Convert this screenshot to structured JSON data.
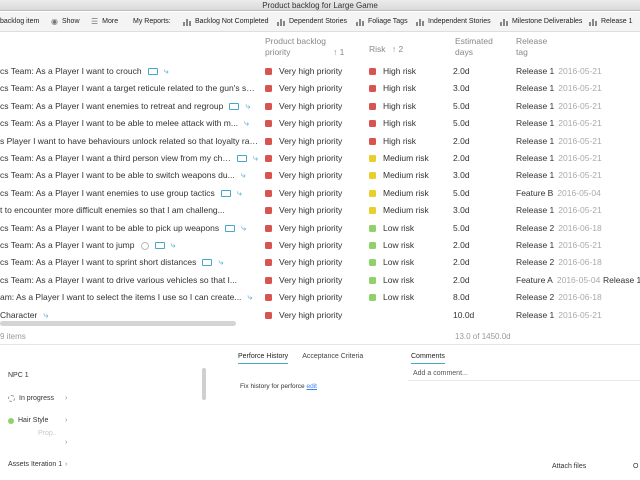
{
  "window": {
    "title": "Product backlog for Large Game"
  },
  "toolbar": {
    "backlog_item": "backlog item",
    "show": "Show",
    "more": "More",
    "my_reports": "My Reports:",
    "reports": [
      "Backlog Not Completed",
      "Dependent Stories",
      "Foliage Tags",
      "Independent Stories",
      "Milestone Deliverables",
      "Release 1"
    ]
  },
  "columns": {
    "priority": "Product backlog priority",
    "priority_sort": "↑ 1",
    "risk": "Risk",
    "risk_sort": "↑ 2",
    "estimated": "Estimated days",
    "release": "Release tag"
  },
  "colors": {
    "red": "#d9534f",
    "yellow": "#e8cf2c",
    "green": "#8fd16a",
    "accent": "#4aa8c7"
  },
  "rows": [
    {
      "title": "cs Team: As a Player I want to crouch",
      "priority": "Very high priority",
      "risk": "High risk",
      "risk_color": "#d9534f",
      "est": "2.0d",
      "release": "Release 1",
      "date": "2016-05-21",
      "extra": ""
    },
    {
      "title": "cs Team: As a Player I want a target reticule related to the gun's spre...",
      "priority": "Very high priority",
      "risk": "High risk",
      "risk_color": "#d9534f",
      "est": "3.0d",
      "release": "Release 1",
      "date": "2016-05-21",
      "extra": ""
    },
    {
      "title": "cs Team: As a Player I want enemies to retreat and regroup",
      "priority": "Very high priority",
      "risk": "High risk",
      "risk_color": "#d9534f",
      "est": "5.0d",
      "release": "Release 1",
      "date": "2016-05-21",
      "extra": ""
    },
    {
      "title": "cs Team: As a Player I want to be able to melee attack with m...",
      "priority": "Very high priority",
      "risk": "High risk",
      "risk_color": "#d9534f",
      "est": "5.0d",
      "release": "Release 1",
      "date": "2016-05-21",
      "extra": ""
    },
    {
      "title": "s Player I want to have behaviours unlock related so that loyalty rat...",
      "priority": "Very high priority",
      "risk": "High risk",
      "risk_color": "#d9534f",
      "est": "2.0d",
      "release": "Release 1",
      "date": "2016-05-21",
      "extra": ""
    },
    {
      "title": "cs Team: As a Player I want a third person view from my char...",
      "priority": "Very high priority",
      "risk": "Medium risk",
      "risk_color": "#e8cf2c",
      "est": "2.0d",
      "release": "Release 1",
      "date": "2016-05-21",
      "extra": ""
    },
    {
      "title": "cs Team: As a Player I want to be able to switch weapons du...",
      "priority": "Very high priority",
      "risk": "Medium risk",
      "risk_color": "#e8cf2c",
      "est": "3.0d",
      "release": "Release 1",
      "date": "2016-05-21",
      "extra": ""
    },
    {
      "title": "cs Team: As a Player I want enemies to use group tactics",
      "priority": "Very high priority",
      "risk": "Medium risk",
      "risk_color": "#e8cf2c",
      "est": "5.0d",
      "release": "Feature B",
      "date": "2016-05-04",
      "extra": ""
    },
    {
      "title": "t to encounter more difficult enemies so that I am challeng...",
      "priority": "Very high priority",
      "risk": "Medium risk",
      "risk_color": "#e8cf2c",
      "est": "3.0d",
      "release": "Release 1",
      "date": "2016-05-21",
      "extra": ""
    },
    {
      "title": "cs Team: As a Player I want to be able to pick up weapons",
      "priority": "Very high priority",
      "risk": "Low risk",
      "risk_color": "#8fd16a",
      "est": "5.0d",
      "release": "Release 2",
      "date": "2016-06-18",
      "extra": ""
    },
    {
      "title": "cs Team: As a Player I want to jump",
      "priority": "Very high priority",
      "risk": "Low risk",
      "risk_color": "#8fd16a",
      "est": "2.0d",
      "release": "Release 1",
      "date": "2016-05-21",
      "extra": ""
    },
    {
      "title": "cs Team: As a Player I want to sprint short distances",
      "priority": "Very high priority",
      "risk": "Low risk",
      "risk_color": "#8fd16a",
      "est": "2.0d",
      "release": "Release 2",
      "date": "2016-06-18",
      "extra": ""
    },
    {
      "title": "cs Team: As a Player I want to drive various vehicles so that I...",
      "priority": "Very high priority",
      "risk": "Low risk",
      "risk_color": "#8fd16a",
      "est": "2.0d",
      "release": "Feature A",
      "date": "2016-05-04",
      "extra": "Release 1"
    },
    {
      "title": "am: As a Player I want to select the items I use so I can create...",
      "priority": "Very high priority",
      "risk": "Low risk",
      "risk_color": "#8fd16a",
      "est": "8.0d",
      "release": "Release 2",
      "date": "2016-06-18",
      "extra": ""
    },
    {
      "title": "Character",
      "priority": "Very high priority",
      "risk": "",
      "risk_color": "",
      "est": "10.0d",
      "release": "Release 1",
      "date": "2016-05-21",
      "extra": ""
    }
  ],
  "footer": {
    "items": "9 items",
    "summary": "13.0 of 1450.0d"
  },
  "detail": {
    "npc": "NPC 1",
    "status": "In progress",
    "hair": "Hair Style",
    "faded": "Prop..",
    "assets": "Assets Iteration 1",
    "tab_perforce": "Perforce History",
    "tab_acceptance": "Acceptance Criteria",
    "fix_history": "Fix history for perforce",
    "fix_link": "edit",
    "comments": "Comments",
    "add_comment": "Add a comment...",
    "attach_files": "Attach files",
    "attach_more": "O"
  }
}
